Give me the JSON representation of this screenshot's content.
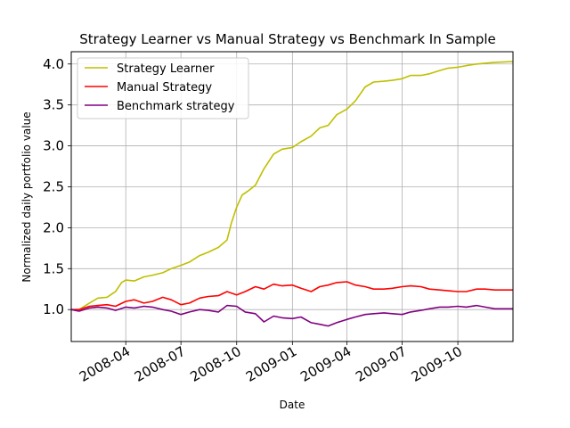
{
  "chart_data": {
    "type": "line",
    "title": "Strategy Learner vs Manual Strategy vs Benchmark In Sample",
    "xlabel": "Date",
    "ylabel": "Normalized daily portfolio value",
    "xlim": [
      "2008-01-02",
      "2009-12-31"
    ],
    "ylim": [
      0.61,
      4.15
    ],
    "x_ticks": [
      {
        "date": "2008-04-01",
        "label": "2008-04"
      },
      {
        "date": "2008-07-01",
        "label": "2008-07"
      },
      {
        "date": "2008-10-01",
        "label": "2008-10"
      },
      {
        "date": "2009-01-01",
        "label": "2009-01"
      },
      {
        "date": "2009-04-01",
        "label": "2009-04"
      },
      {
        "date": "2009-07-01",
        "label": "2009-07"
      },
      {
        "date": "2009-10-01",
        "label": "2009-10"
      }
    ],
    "y_ticks": [
      1.0,
      1.5,
      2.0,
      2.5,
      3.0,
      3.5,
      4.0
    ],
    "y_tick_labels": [
      "1.0",
      "1.5",
      "2.0",
      "2.5",
      "3.0",
      "3.5",
      "4.0"
    ],
    "grid": true,
    "legend_position": "top-left",
    "series": [
      {
        "name": "Strategy Learner",
        "color": "#bfbf00",
        "points": [
          [
            "2008-01-02",
            1.0
          ],
          [
            "2008-01-15",
            1.0
          ],
          [
            "2008-02-01",
            1.08
          ],
          [
            "2008-02-15",
            1.14
          ],
          [
            "2008-03-01",
            1.15
          ],
          [
            "2008-03-15",
            1.22
          ],
          [
            "2008-03-25",
            1.33
          ],
          [
            "2008-04-01",
            1.36
          ],
          [
            "2008-04-15",
            1.35
          ],
          [
            "2008-05-01",
            1.4
          ],
          [
            "2008-05-15",
            1.42
          ],
          [
            "2008-06-01",
            1.45
          ],
          [
            "2008-06-15",
            1.5
          ],
          [
            "2008-07-01",
            1.54
          ],
          [
            "2008-07-15",
            1.58
          ],
          [
            "2008-08-01",
            1.66
          ],
          [
            "2008-08-15",
            1.7
          ],
          [
            "2008-09-01",
            1.76
          ],
          [
            "2008-09-15",
            1.85
          ],
          [
            "2008-09-22",
            2.05
          ],
          [
            "2008-10-01",
            2.25
          ],
          [
            "2008-10-10",
            2.4
          ],
          [
            "2008-10-20",
            2.45
          ],
          [
            "2008-11-01",
            2.52
          ],
          [
            "2008-11-15",
            2.72
          ],
          [
            "2008-12-01",
            2.9
          ],
          [
            "2008-12-15",
            2.96
          ],
          [
            "2009-01-01",
            2.98
          ],
          [
            "2009-01-15",
            3.05
          ],
          [
            "2009-02-01",
            3.12
          ],
          [
            "2009-02-15",
            3.22
          ],
          [
            "2009-03-01",
            3.25
          ],
          [
            "2009-03-15",
            3.38
          ],
          [
            "2009-04-01",
            3.45
          ],
          [
            "2009-04-15",
            3.55
          ],
          [
            "2009-05-01",
            3.72
          ],
          [
            "2009-05-15",
            3.78
          ],
          [
            "2009-06-01",
            3.79
          ],
          [
            "2009-06-15",
            3.8
          ],
          [
            "2009-07-01",
            3.82
          ],
          [
            "2009-07-15",
            3.86
          ],
          [
            "2009-08-01",
            3.86
          ],
          [
            "2009-08-15",
            3.88
          ],
          [
            "2009-09-01",
            3.92
          ],
          [
            "2009-09-15",
            3.95
          ],
          [
            "2009-10-01",
            3.96
          ],
          [
            "2009-10-15",
            3.98
          ],
          [
            "2009-11-01",
            4.0
          ],
          [
            "2009-11-15",
            4.01
          ],
          [
            "2009-12-01",
            4.02
          ],
          [
            "2009-12-31",
            4.03
          ]
        ]
      },
      {
        "name": "Manual Strategy",
        "color": "#ff0000",
        "points": [
          [
            "2008-01-02",
            1.0
          ],
          [
            "2008-01-15",
            1.0
          ],
          [
            "2008-02-01",
            1.04
          ],
          [
            "2008-02-15",
            1.05
          ],
          [
            "2008-03-01",
            1.06
          ],
          [
            "2008-03-15",
            1.04
          ],
          [
            "2008-04-01",
            1.1
          ],
          [
            "2008-04-15",
            1.12
          ],
          [
            "2008-05-01",
            1.08
          ],
          [
            "2008-05-15",
            1.1
          ],
          [
            "2008-06-01",
            1.15
          ],
          [
            "2008-06-15",
            1.12
          ],
          [
            "2008-07-01",
            1.06
          ],
          [
            "2008-07-15",
            1.08
          ],
          [
            "2008-08-01",
            1.14
          ],
          [
            "2008-08-15",
            1.16
          ],
          [
            "2008-09-01",
            1.17
          ],
          [
            "2008-09-15",
            1.22
          ],
          [
            "2008-10-01",
            1.18
          ],
          [
            "2008-10-15",
            1.22
          ],
          [
            "2008-11-01",
            1.28
          ],
          [
            "2008-11-15",
            1.25
          ],
          [
            "2008-12-01",
            1.31
          ],
          [
            "2008-12-15",
            1.29
          ],
          [
            "2009-01-01",
            1.3
          ],
          [
            "2009-01-15",
            1.26
          ],
          [
            "2009-02-01",
            1.22
          ],
          [
            "2009-02-15",
            1.28
          ],
          [
            "2009-03-01",
            1.3
          ],
          [
            "2009-03-15",
            1.33
          ],
          [
            "2009-04-01",
            1.34
          ],
          [
            "2009-04-15",
            1.3
          ],
          [
            "2009-05-01",
            1.28
          ],
          [
            "2009-05-15",
            1.25
          ],
          [
            "2009-06-01",
            1.25
          ],
          [
            "2009-06-15",
            1.26
          ],
          [
            "2009-07-01",
            1.28
          ],
          [
            "2009-07-15",
            1.29
          ],
          [
            "2009-08-01",
            1.28
          ],
          [
            "2009-08-15",
            1.25
          ],
          [
            "2009-09-01",
            1.24
          ],
          [
            "2009-09-15",
            1.23
          ],
          [
            "2009-10-01",
            1.22
          ],
          [
            "2009-10-15",
            1.22
          ],
          [
            "2009-11-01",
            1.25
          ],
          [
            "2009-11-15",
            1.25
          ],
          [
            "2009-12-01",
            1.24
          ],
          [
            "2009-12-31",
            1.24
          ]
        ]
      },
      {
        "name": "Benchmark strategy",
        "color": "#800080",
        "points": [
          [
            "2008-01-02",
            1.0
          ],
          [
            "2008-01-15",
            0.98
          ],
          [
            "2008-02-01",
            1.02
          ],
          [
            "2008-02-15",
            1.03
          ],
          [
            "2008-03-01",
            1.02
          ],
          [
            "2008-03-15",
            0.99
          ],
          [
            "2008-04-01",
            1.03
          ],
          [
            "2008-04-15",
            1.02
          ],
          [
            "2008-05-01",
            1.04
          ],
          [
            "2008-05-15",
            1.03
          ],
          [
            "2008-06-01",
            1.0
          ],
          [
            "2008-06-15",
            0.98
          ],
          [
            "2008-07-01",
            0.94
          ],
          [
            "2008-07-15",
            0.97
          ],
          [
            "2008-08-01",
            1.0
          ],
          [
            "2008-08-15",
            0.99
          ],
          [
            "2008-09-01",
            0.97
          ],
          [
            "2008-09-15",
            1.05
          ],
          [
            "2008-10-01",
            1.04
          ],
          [
            "2008-10-15",
            0.97
          ],
          [
            "2008-11-01",
            0.95
          ],
          [
            "2008-11-15",
            0.85
          ],
          [
            "2008-12-01",
            0.92
          ],
          [
            "2008-12-15",
            0.9
          ],
          [
            "2009-01-01",
            0.89
          ],
          [
            "2009-01-15",
            0.91
          ],
          [
            "2009-02-01",
            0.84
          ],
          [
            "2009-02-15",
            0.82
          ],
          [
            "2009-03-01",
            0.8
          ],
          [
            "2009-03-15",
            0.84
          ],
          [
            "2009-04-01",
            0.88
          ],
          [
            "2009-04-15",
            0.91
          ],
          [
            "2009-05-01",
            0.94
          ],
          [
            "2009-05-15",
            0.95
          ],
          [
            "2009-06-01",
            0.96
          ],
          [
            "2009-06-15",
            0.95
          ],
          [
            "2009-07-01",
            0.94
          ],
          [
            "2009-07-15",
            0.97
          ],
          [
            "2009-08-01",
            0.99
          ],
          [
            "2009-08-15",
            1.01
          ],
          [
            "2009-09-01",
            1.03
          ],
          [
            "2009-09-15",
            1.03
          ],
          [
            "2009-10-01",
            1.04
          ],
          [
            "2009-10-15",
            1.03
          ],
          [
            "2009-11-01",
            1.05
          ],
          [
            "2009-11-15",
            1.03
          ],
          [
            "2009-12-01",
            1.01
          ],
          [
            "2009-12-31",
            1.01
          ]
        ]
      }
    ]
  }
}
